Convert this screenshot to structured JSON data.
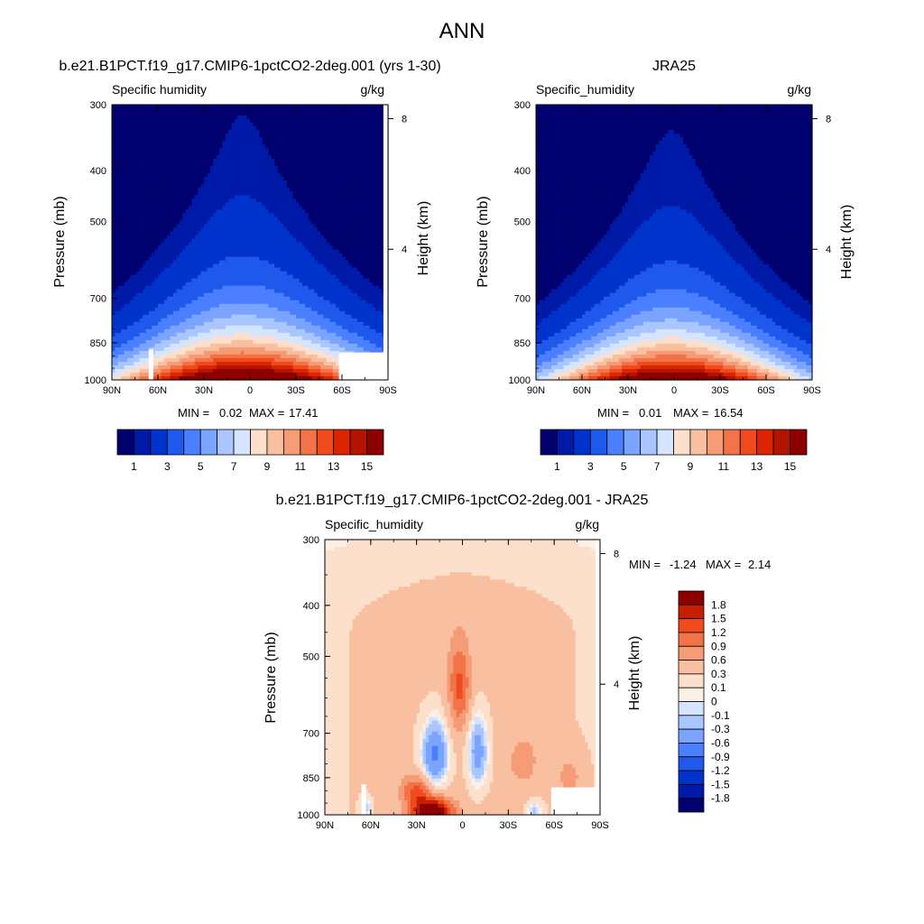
{
  "figure": {
    "title": "ANN"
  },
  "chart_data": [
    {
      "type": "heatmap",
      "panel_title": "b.e21.B1PCT.f19_g17.CMIP6-1pctCO2-2deg.001 (yrs 1-30)",
      "left_label": "Specific humidity",
      "right_label": "g/kg",
      "ylabel": "Pressure (mb)",
      "ylabel_right": "Height (km)",
      "xticks": [
        "90N",
        "60N",
        "30N",
        "0",
        "30S",
        "60S",
        "90S"
      ],
      "yticks": [
        300,
        400,
        500,
        700,
        850,
        1000
      ],
      "height_ticks": [
        8,
        4
      ],
      "ylim": [
        1000,
        300
      ],
      "xlim": [
        90,
        -90
      ],
      "stats": {
        "min_label": "MIN =",
        "min": "0.02",
        "max_label": "MAX =",
        "max": "17.41"
      },
      "levels": [
        0.5,
        1,
        2,
        3,
        4,
        5,
        6,
        7,
        8,
        9,
        10,
        11,
        12,
        13,
        14,
        15,
        16
      ],
      "colorbar_labels": [
        "1",
        "3",
        "5",
        "7",
        "9",
        "11",
        "13",
        "15"
      ],
      "colors": [
        "#00006e",
        "#001aa8",
        "#0033cc",
        "#1f59ec",
        "#4a7fff",
        "#7ba4ff",
        "#a9c6ff",
        "#d5e4ff",
        "#fde0cc",
        "#f8c0a0",
        "#f59b75",
        "#f27347",
        "#ef4b1f",
        "#dc2500",
        "#b31400",
        "#8c0000"
      ],
      "field": {
        "peak": 17.41,
        "min": 0.02,
        "center_lat": 5,
        "decay_p": 0.0052,
        "width_base": 22,
        "width_growth": 0.095,
        "north_asym": 1.0,
        "south_asym": 1.1
      },
      "missing": [
        {
          "lat": [
            66,
            63
          ],
          "p": [
            875,
            1000
          ]
        },
        {
          "lat": [
            -58,
            -88
          ],
          "p": [
            887,
            1000
          ]
        },
        {
          "lat": [
            -87,
            -90
          ],
          "p": [
            300,
            1000
          ]
        }
      ]
    },
    {
      "type": "heatmap",
      "panel_title": "JRA25",
      "left_label": "Specific_humidity",
      "right_label": "g/kg",
      "ylabel": "Pressure (mb)",
      "ylabel_right": "Height (km)",
      "xticks": [
        "90N",
        "60N",
        "30N",
        "0",
        "30S",
        "60S",
        "90S"
      ],
      "yticks": [
        300,
        400,
        500,
        700,
        850,
        1000
      ],
      "height_ticks": [
        8,
        4
      ],
      "ylim": [
        1000,
        300
      ],
      "xlim": [
        90,
        -90
      ],
      "stats": {
        "min_label": "MIN =",
        "min": "0.01",
        "max_label": "MAX =",
        "max": "16.54"
      },
      "levels": [
        0.5,
        1,
        2,
        3,
        4,
        5,
        6,
        7,
        8,
        9,
        10,
        11,
        12,
        13,
        14,
        15,
        16
      ],
      "colorbar_labels": [
        "1",
        "3",
        "5",
        "7",
        "9",
        "11",
        "13",
        "15"
      ],
      "colors": [
        "#00006e",
        "#001aa8",
        "#0033cc",
        "#1f59ec",
        "#4a7fff",
        "#7ba4ff",
        "#a9c6ff",
        "#d5e4ff",
        "#fde0cc",
        "#f8c0a0",
        "#f59b75",
        "#f27347",
        "#ef4b1f",
        "#dc2500",
        "#b31400",
        "#8c0000"
      ],
      "field": {
        "peak": 16.54,
        "min": 0.01,
        "center_lat": 2,
        "decay_p": 0.0053,
        "width_base": 21,
        "width_growth": 0.09,
        "north_asym": 1.0,
        "south_asym": 1.05
      },
      "missing": []
    },
    {
      "type": "heatmap",
      "panel_title": "b.e21.B1PCT.f19_g17.CMIP6-1pctCO2-2deg.001 - JRA25",
      "left_label": "Specific_humidity",
      "right_label": "g/kg",
      "ylabel": "Pressure (mb)",
      "ylabel_right": "Height (km)",
      "xticks": [
        "90N",
        "60N",
        "30N",
        "0",
        "30S",
        "60S",
        "90S"
      ],
      "yticks": [
        300,
        400,
        500,
        700,
        850,
        1000
      ],
      "height_ticks": [
        8,
        4
      ],
      "ylim": [
        1000,
        300
      ],
      "xlim": [
        90,
        -90
      ],
      "stats": {
        "min_label": "MIN =",
        "min": "-1.24",
        "max_label": "MAX =",
        "max": "2.14"
      },
      "levels": [
        -1.8,
        -1.5,
        -1.2,
        -0.9,
        -0.6,
        -0.3,
        -0.1,
        0,
        0.1,
        0.3,
        0.6,
        0.9,
        1.2,
        1.5,
        1.8
      ],
      "colorbar_labels": [
        "1.8",
        "1.5",
        "1.2",
        "0.9",
        "0.6",
        "0.3",
        "0.1",
        "0",
        "-0.1",
        "-0.3",
        "-0.6",
        "-0.9",
        "-1.2",
        "-1.5",
        "-1.8"
      ],
      "colors": [
        "#00006e",
        "#001aa8",
        "#0033cc",
        "#1f59ec",
        "#4a7fff",
        "#7ba4ff",
        "#a9c6ff",
        "#d5e4ff",
        "#fdf0e4",
        "#fde0cc",
        "#f8c0a0",
        "#f59b75",
        "#f27347",
        "#ef4b1f",
        "#c81e00",
        "#8c0000"
      ],
      "missing": [
        {
          "lat": [
            66,
            63
          ],
          "p": [
            875,
            1000
          ]
        },
        {
          "lat": [
            -58,
            -88
          ],
          "p": [
            887,
            1000
          ]
        },
        {
          "lat": [
            -87,
            -90
          ],
          "p": [
            300,
            1000
          ]
        }
      ]
    }
  ]
}
